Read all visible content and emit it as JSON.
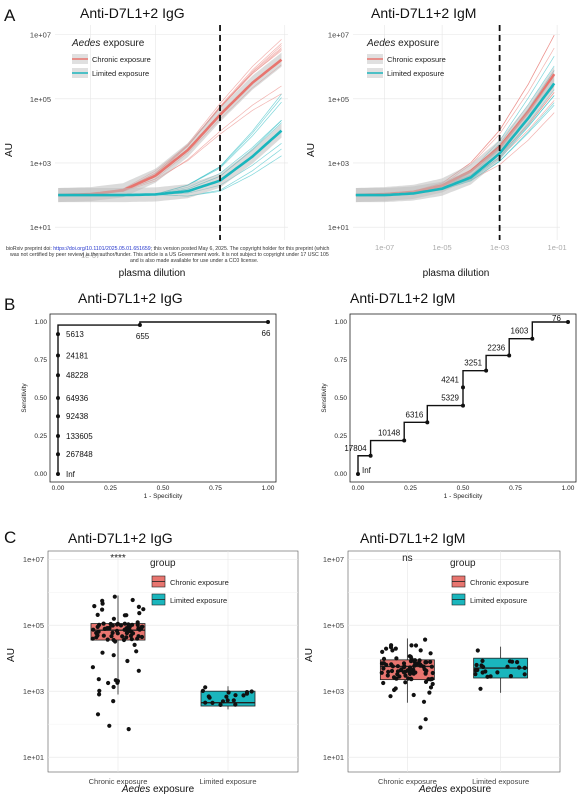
{
  "colors": {
    "chronic": "#e8756f",
    "limited": "#1ab6bd",
    "dashed": "#111111"
  },
  "panel_labels": [
    "A",
    "B",
    "C"
  ],
  "preprint_note": {
    "line1_pre": "bioRxiv preprint doi: ",
    "line1_link": "https://doi.org/10.1101/2025.05.01.651659",
    "line1_post": "; this version posted May 6, 2025. The copyright holder for this preprint (which",
    "line2": "was not certified by peer review) is the author/funder. This article is a US Government work. It is not subject to copyright under 17 USC 105",
    "line3": "and is also made available for use under a CC0 license."
  },
  "panelA": {
    "legend_title_italic": "Aedes",
    "legend_title_rest": " exposure",
    "legend": [
      "Chronic exposure",
      "Limited exposure"
    ],
    "ylabel": "AU",
    "xlabel": "plasma dilution",
    "yticks": [
      "1e+07",
      "1e+05",
      "1e+03",
      "1e+01"
    ],
    "xticks": [
      "1e-07",
      "1e-05",
      "1e-03",
      "1e-01"
    ],
    "left_partial_xtick": "1e-07",
    "cutoff_log10_dilution": -3
  },
  "panelB": {
    "xlabel": "1 - Specificity",
    "ylabel": "Sensitivity",
    "ticks": [
      "0.00",
      "0.25",
      "0.50",
      "0.75",
      "1.00"
    ]
  },
  "panelC": {
    "legend_title": "group",
    "legend": [
      "Chronic exposure",
      "Limited exposure"
    ],
    "ylabel": "AU",
    "yticks": [
      "1e+07",
      "1e+05",
      "1e+03",
      "1e+01"
    ],
    "categories": [
      "Chronic exposure",
      "Limited exposure"
    ],
    "xlabel_italic": "Aedes",
    "xlabel_rest": " exposure"
  },
  "chart_data": [
    {
      "id": "A-IgG",
      "type": "line",
      "title": "Anti-D7L1+2 IgG",
      "xlabel": "plasma dilution",
      "ylabel": "AU",
      "xscale": "log",
      "yscale": "log",
      "x_log10": [
        -8,
        -7,
        -6,
        -5,
        -4,
        -3,
        -2,
        -1
      ],
      "series": [
        {
          "name": "Chronic exposure",
          "y_log10": [
            2.0,
            2.03,
            2.15,
            2.6,
            3.4,
            4.5,
            5.5,
            6.3
          ]
        },
        {
          "name": "Limited exposure",
          "y_log10": [
            2.0,
            2.0,
            2.0,
            2.02,
            2.12,
            2.45,
            3.2,
            4.1
          ]
        }
      ],
      "cutoff_x_log10": -3
    },
    {
      "id": "A-IgM",
      "type": "line",
      "title": "Anti-D7L1+2 IgM",
      "xlabel": "plasma dilution",
      "ylabel": "AU",
      "xscale": "log",
      "yscale": "log",
      "x_log10": [
        -8,
        -7,
        -6,
        -5,
        -4,
        -3,
        -2,
        -1
      ],
      "series": [
        {
          "name": "Chronic exposure",
          "y_log10": [
            2.0,
            2.03,
            2.1,
            2.3,
            2.75,
            3.5,
            4.6,
            5.9
          ]
        },
        {
          "name": "Limited exposure",
          "y_log10": [
            2.0,
            2.0,
            2.05,
            2.2,
            2.55,
            3.3,
            4.4,
            5.6
          ]
        }
      ],
      "cutoff_x_log10": -3
    },
    {
      "id": "B-IgG",
      "type": "line",
      "title": "Anti-D7L1+2 IgG",
      "xlabel": "1 - Specificity",
      "ylabel": "Sensitivity",
      "xlim": [
        0,
        1
      ],
      "ylim": [
        0,
        1
      ],
      "points": [
        {
          "x": 0.0,
          "y": 0.0,
          "label": "Inf"
        },
        {
          "x": 0.0,
          "y": 0.13,
          "label": "267848"
        },
        {
          "x": 0.0,
          "y": 0.25,
          "label": "133605"
        },
        {
          "x": 0.0,
          "y": 0.38,
          "label": "92438"
        },
        {
          "x": 0.0,
          "y": 0.5,
          "label": "64936"
        },
        {
          "x": 0.0,
          "y": 0.65,
          "label": "48228"
        },
        {
          "x": 0.0,
          "y": 0.78,
          "label": "24181"
        },
        {
          "x": 0.0,
          "y": 0.92,
          "label": "5613"
        },
        {
          "x": 0.39,
          "y": 0.98,
          "label": "655"
        },
        {
          "x": 1.0,
          "y": 1.0,
          "label": "66"
        }
      ]
    },
    {
      "id": "B-IgM",
      "type": "line",
      "title": "Anti-D7L1+2 IgM",
      "xlabel": "1 - Specificity",
      "ylabel": "Sensitivity",
      "xlim": [
        0,
        1
      ],
      "ylim": [
        0,
        1
      ],
      "points": [
        {
          "x": 0.0,
          "y": 0.0,
          "label": "Inf"
        },
        {
          "x": 0.06,
          "y": 0.12,
          "label": "17804"
        },
        {
          "x": 0.22,
          "y": 0.22,
          "label": "10148"
        },
        {
          "x": 0.33,
          "y": 0.34,
          "label": "6316"
        },
        {
          "x": 0.5,
          "y": 0.45,
          "label": "5329"
        },
        {
          "x": 0.5,
          "y": 0.57,
          "label": "4241"
        },
        {
          "x": 0.61,
          "y": 0.68,
          "label": "3251"
        },
        {
          "x": 0.72,
          "y": 0.78,
          "label": "2236"
        },
        {
          "x": 0.83,
          "y": 0.89,
          "label": "1603"
        },
        {
          "x": 1.0,
          "y": 1.0,
          "label": "76"
        }
      ]
    },
    {
      "id": "C-IgG",
      "type": "box",
      "title": "Anti-D7L1+2 IgG",
      "significance": "****",
      "ylabel": "AU",
      "yscale": "log",
      "categories": [
        "Chronic exposure",
        "Limited exposure"
      ],
      "boxes_log10": [
        {
          "q1": 4.55,
          "median": 4.85,
          "q3": 5.05,
          "whisker_low": 2.9,
          "whisker_high": 5.9
        },
        {
          "q1": 2.55,
          "median": 2.65,
          "q3": 3.0,
          "whisker_low": 2.45,
          "whisker_high": 3.15
        }
      ]
    },
    {
      "id": "C-IgM",
      "type": "box",
      "title": "Anti-D7L1+2 IgM",
      "significance": "ns",
      "ylabel": "AU",
      "yscale": "log",
      "categories": [
        "Chronic exposure",
        "Limited exposure"
      ],
      "boxes_log10": [
        {
          "q1": 3.35,
          "median": 3.75,
          "q3": 3.95,
          "whisker_low": 2.65,
          "whisker_high": 4.6
        },
        {
          "q1": 3.4,
          "median": 3.7,
          "q3": 4.0,
          "whisker_low": 2.95,
          "whisker_high": 4.35
        }
      ]
    }
  ]
}
